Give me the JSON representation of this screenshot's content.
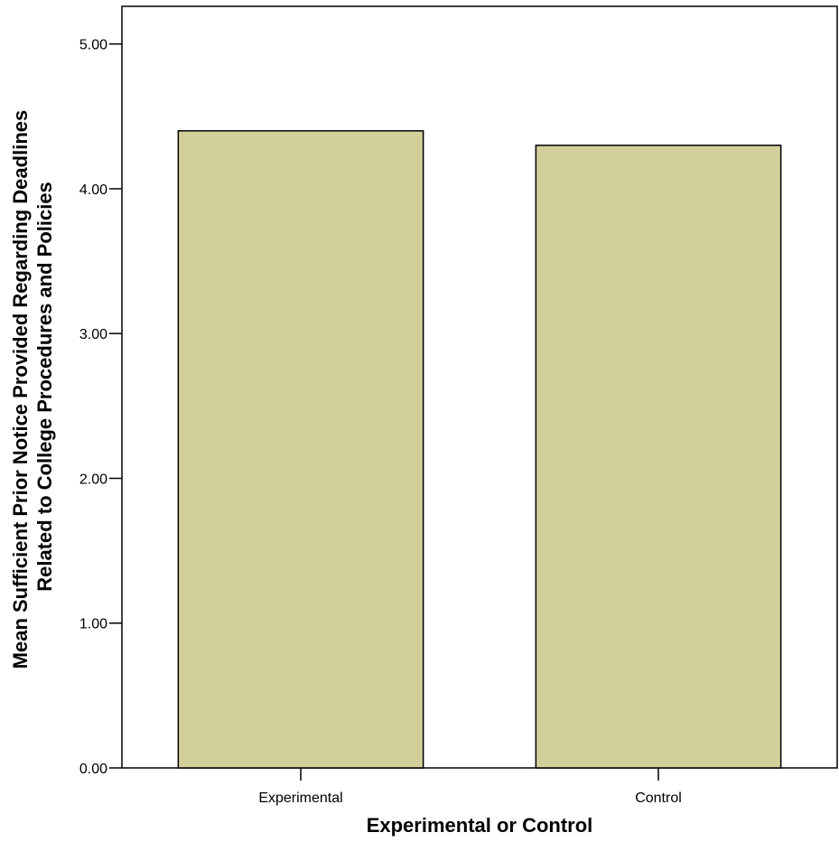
{
  "chart_data": {
    "type": "bar",
    "title": "",
    "categories": [
      "Experimental",
      "Control"
    ],
    "values": [
      4.4,
      4.3
    ],
    "xlabel": "Experimental or Control",
    "ylabel_lines": [
      "Mean Sufficient Prior Notice Provided Regarding Deadlines",
      "Related to College Procedures and Policies"
    ],
    "ylim": [
      0,
      5.26
    ],
    "yticks": [
      0,
      1,
      2,
      3,
      4,
      5
    ],
    "ytick_labels": [
      "0.00",
      "1.00",
      "2.00",
      "3.00",
      "4.00",
      "5.00"
    ],
    "grid": false,
    "legend": "none",
    "bar_color": "#d3cf9a",
    "bar_edge_color": "#000000"
  }
}
